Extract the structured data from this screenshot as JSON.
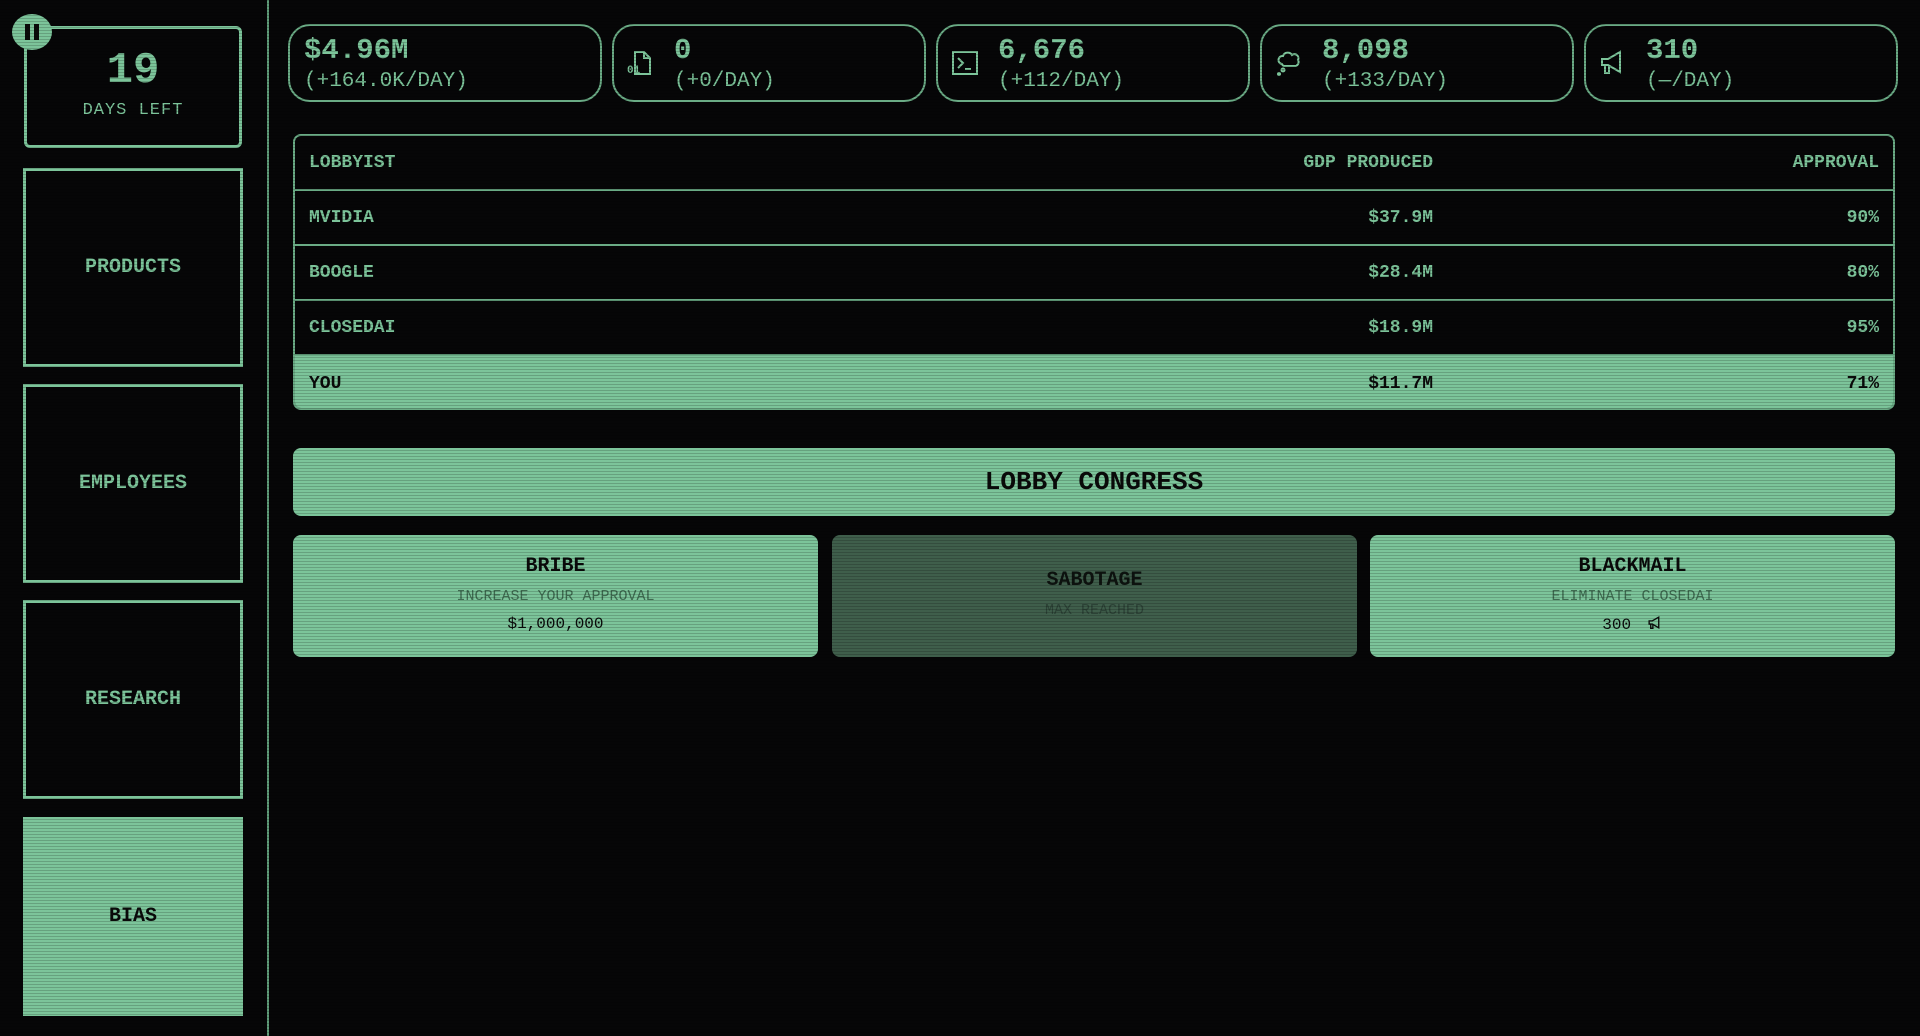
{
  "sidebar": {
    "days_left": "19",
    "days_label": "DAYS LEFT",
    "items": [
      {
        "label": "PRODUCTS",
        "active": false
      },
      {
        "label": "EMPLOYEES",
        "active": false
      },
      {
        "label": "RESEARCH",
        "active": false
      },
      {
        "label": "BIAS",
        "active": true
      }
    ]
  },
  "stats": [
    {
      "icon": "money",
      "value": "$4.96M",
      "delta": "(+164.0K/DAY)"
    },
    {
      "icon": "file-binary-icon",
      "value": "0",
      "delta": "(+0/DAY)"
    },
    {
      "icon": "terminal-icon",
      "value": "6,676",
      "delta": "(+112/DAY)"
    },
    {
      "icon": "thought-cloud-icon",
      "value": "8,098",
      "delta": "(+133/DAY)"
    },
    {
      "icon": "megaphone-icon",
      "value": "310",
      "delta": "(—/DAY)"
    }
  ],
  "table": {
    "headers": [
      "LOBBYIST",
      "GDP PRODUCED",
      "APPROVAL"
    ],
    "rows": [
      [
        "MVIDIA",
        "$37.9M",
        "90%"
      ],
      [
        "BOOGLE",
        "$28.4M",
        "80%"
      ],
      [
        "CLOSEDAI",
        "$18.9M",
        "95%"
      ],
      [
        "YOU",
        "$11.7M",
        "71%"
      ]
    ]
  },
  "lobby_label": "LOBBY CONGRESS",
  "actions": [
    {
      "title": "BRIBE",
      "subtitle": "INCREASE YOUR APPROVAL",
      "price": "$1,000,000"
    },
    {
      "title": "SABOTAGE",
      "subtitle": "MAX REACHED",
      "disabled": true
    },
    {
      "title": "BLACKMAIL",
      "subtitle": "ELIMINATE CLOSEDAI",
      "price": "300",
      "price_icon": "megaphone-icon"
    }
  ],
  "colors": {
    "accent": "#7cc49a",
    "background": "#060607",
    "disabled": "#3f5e4b"
  }
}
